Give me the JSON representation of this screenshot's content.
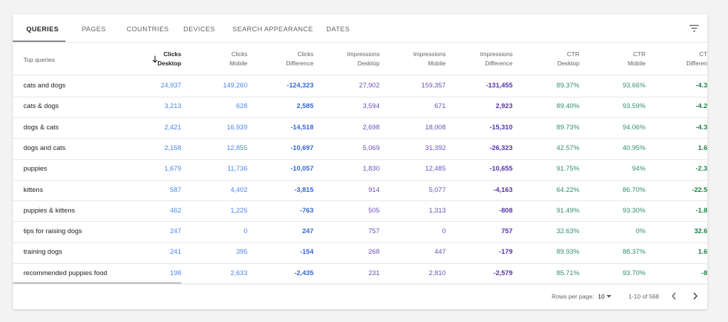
{
  "tabs": [
    "QUERIES",
    "PAGES",
    "COUNTRIES",
    "DEVICES",
    "SEARCH APPEARANCE",
    "DATES"
  ],
  "table": {
    "first_header": "Top queries",
    "columns": [
      [
        "Clicks",
        "Desktop"
      ],
      [
        "Clicks",
        "Mobile"
      ],
      [
        "Clicks",
        "Difference"
      ],
      [
        "Impressions",
        "Desktop"
      ],
      [
        "Impressions",
        "Mobile"
      ],
      [
        "Impressions",
        "Difference"
      ],
      [
        "CTR",
        "Desktop"
      ],
      [
        "CTR",
        "Mobile"
      ],
      [
        "CT",
        "Differen"
      ]
    ],
    "rows": [
      {
        "query": "cats and dogs",
        "cells": [
          "24,937",
          "149,260",
          "-124,323",
          "27,902",
          "159,357",
          "-131,455",
          "89.37%",
          "93.66%",
          "-4.3"
        ]
      },
      {
        "query": "cats & dogs",
        "cells": [
          "3,213",
          "628",
          "2,585",
          "3,594",
          "671",
          "2,923",
          "89.40%",
          "93.59%",
          "-4.2"
        ]
      },
      {
        "query": "dogs & cats",
        "cells": [
          "2,421",
          "16,939",
          "-14,518",
          "2,698",
          "18,008",
          "-15,310",
          "89.73%",
          "94.06%",
          "-4.3"
        ]
      },
      {
        "query": "dogs and cats",
        "cells": [
          "2,158",
          "12,855",
          "-10,697",
          "5,069",
          "31,392",
          "-26,323",
          "42.57%",
          "40.95%",
          "1.6"
        ]
      },
      {
        "query": "puppies",
        "cells": [
          "1,679",
          "11,736",
          "-10,057",
          "1,830",
          "12,485",
          "-10,655",
          "91.75%",
          "94%",
          "-2.3"
        ]
      },
      {
        "query": "kittens",
        "cells": [
          "587",
          "4,402",
          "-3,815",
          "914",
          "5,077",
          "-4,163",
          "64.22%",
          "86.70%",
          "-22.5"
        ]
      },
      {
        "query": "puppies & kittens",
        "cells": [
          "462",
          "1,225",
          "-763",
          "505",
          "1,313",
          "-808",
          "91.49%",
          "93.30%",
          "-1.8"
        ]
      },
      {
        "query": "tips for raising dogs",
        "cells": [
          "247",
          "0",
          "247",
          "757",
          "0",
          "757",
          "32.63%",
          "0%",
          "32.6"
        ]
      },
      {
        "query": "training dogs",
        "cells": [
          "241",
          "395",
          "-154",
          "268",
          "447",
          "-179",
          "89.93%",
          "88.37%",
          "1.6"
        ]
      },
      {
        "query": "recommended puppies food",
        "cells": [
          "198",
          "2,633",
          "-2,435",
          "231",
          "2,810",
          "-2,579",
          "85.71%",
          "93.70%",
          "-8"
        ]
      }
    ]
  },
  "footer": {
    "rows_per_page_label": "Rows per page:",
    "rows_per_page": "10",
    "range": "1-10 of 568"
  }
}
